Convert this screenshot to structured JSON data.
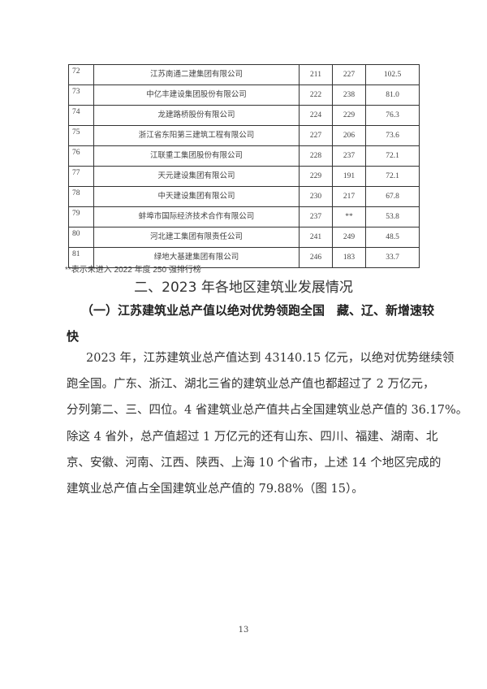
{
  "table": {
    "rows": [
      {
        "rank": "72",
        "name": "江苏南通二建集团有限公司",
        "c3": "211",
        "c4": "227",
        "c5": "102.5"
      },
      {
        "rank": "73",
        "name": "中亿丰建设集团股份有限公司",
        "c3": "222",
        "c4": "238",
        "c5": "81.0"
      },
      {
        "rank": "74",
        "name": "龙建路桥股份有限公司",
        "c3": "224",
        "c4": "229",
        "c5": "76.3"
      },
      {
        "rank": "75",
        "name": "浙江省东阳第三建筑工程有限公司",
        "c3": "227",
        "c4": "206",
        "c5": "73.6"
      },
      {
        "rank": "76",
        "name": "江联重工集团股份有限公司",
        "c3": "228",
        "c4": "237",
        "c5": "72.1"
      },
      {
        "rank": "77",
        "name": "天元建设集团有限公司",
        "c3": "229",
        "c4": "191",
        "c5": "72.1"
      },
      {
        "rank": "78",
        "name": "中天建设集团有限公司",
        "c3": "230",
        "c4": "217",
        "c5": "67.8"
      },
      {
        "rank": "79",
        "name": "蚌埠市国际经济技术合作有限公司",
        "c3": "237",
        "c4": "**",
        "c5": "53.8"
      },
      {
        "rank": "80",
        "name": "河北建工集团有限责任公司",
        "c3": "241",
        "c4": "249",
        "c5": "48.5"
      },
      {
        "rank": "81",
        "name": "绿地大基建集团有限公司",
        "c3": "246",
        "c4": "183",
        "c5": "33.7"
      }
    ],
    "note": "**表示未进入 2022 年度 250 强排行榜"
  },
  "section_title": "二、2023 年各地区建筑业发展情况",
  "subsection_title_line1": "（一）江苏建筑业总产值以绝对优势领跑全国　藏、辽、新增速较",
  "subsection_title_line2": "快",
  "paragraph_lines": [
    "2023 年，江苏建筑业总产值达到 43140.15 亿元，以绝对优势继续领",
    "跑全国。广东、浙江、湖北三省的建筑业总产值也都超过了 2 万亿元，",
    "分列第二、三、四位。4 省建筑业总产值共占全国建筑业总产值的 36.17%。",
    "除这 4 省外，总产值超过 1 万亿元的还有山东、四川、福建、湖南、北",
    "京、安徽、河南、江西、陕西、上海 10 个省市，上述 14 个地区完成的",
    "建筑业总产值占全国建筑业总产值的 79.88%（图 15）。"
  ],
  "page_number": "13"
}
